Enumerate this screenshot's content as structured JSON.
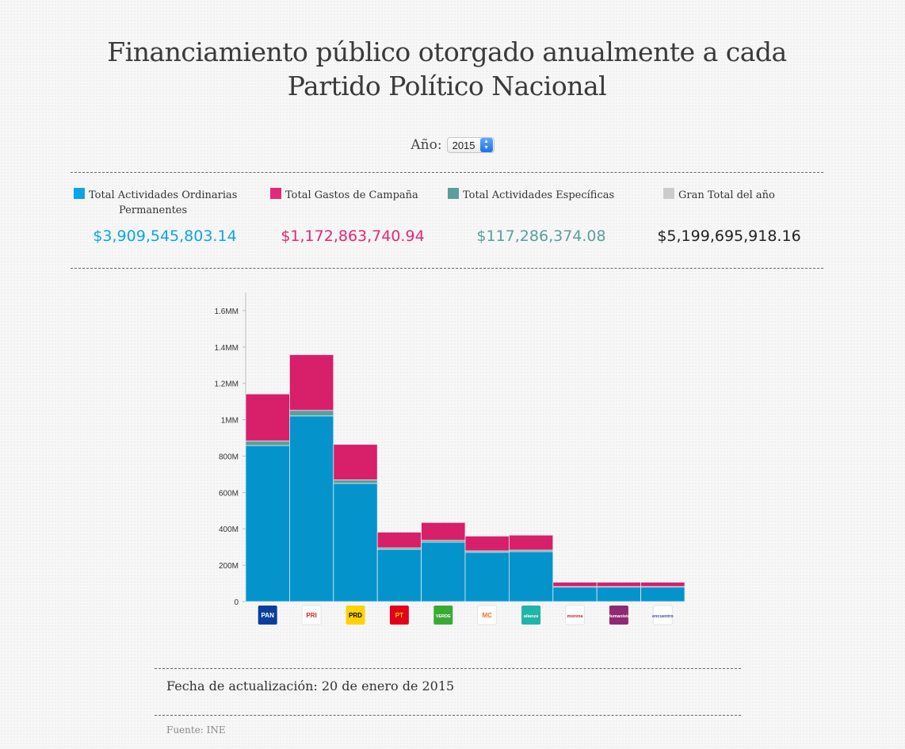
{
  "page": {
    "title": "Financiamiento público otorgado anualmente a cada Partido Político Nacional",
    "year_label": "Año:",
    "year_selected": "2015",
    "update_text": "Fecha de actualización: 20 de enero de 2015",
    "source_text": "Fuente: INE"
  },
  "summary": [
    {
      "label": "Total Actividades Ordinarias Permanentes",
      "value": "$3,909,545,803.14",
      "color": "#0ca5e6"
    },
    {
      "label": "Total Gastos de Campaña",
      "value": "$1,172,863,740.94",
      "color": "#e2287a"
    },
    {
      "label": "Total Actividades Específicas",
      "value": "$117,286,374.08",
      "color": "#5a9f9c"
    },
    {
      "label": "Gran Total del año",
      "value": "$5,199,695,918.16",
      "color": "#cccccc"
    }
  ],
  "party_logos": [
    {
      "text": "PAN",
      "bg": "#0a3f9c",
      "fg": "#ffffff"
    },
    {
      "text": "PRI",
      "bg": "#ffffff",
      "fg": "#d81f26"
    },
    {
      "text": "PRD",
      "bg": "#ffd200",
      "fg": "#000000"
    },
    {
      "text": "PT",
      "bg": "#e3001b",
      "fg": "#ffdd00"
    },
    {
      "text": "VERDE",
      "bg": "#3aaa35",
      "fg": "#ffffff"
    },
    {
      "text": "MC",
      "bg": "#ffffff",
      "fg": "#ff6a13"
    },
    {
      "text": "alianza",
      "bg": "#1fb5a8",
      "fg": "#ffffff"
    },
    {
      "text": "morena",
      "bg": "#ffffff",
      "fg": "#b3282d"
    },
    {
      "text": "Humanista",
      "bg": "#8e2a72",
      "fg": "#ffffff"
    },
    {
      "text": "encuentro",
      "bg": "#ffffff",
      "fg": "#3a4da0"
    }
  ],
  "chart_data": {
    "type": "bar",
    "stacked": true,
    "categories": [
      "PAN",
      "PRI",
      "PRD",
      "PT",
      "VERDE",
      "MC",
      "NUEVA ALIANZA",
      "MORENA",
      "HUMANISTA",
      "ENCUENTRO SOCIAL"
    ],
    "series": [
      {
        "name": "Total Actividades Ordinarias Permanentes",
        "color": "#0494cb",
        "values": [
          858000000,
          1021000000,
          650000000,
          287000000,
          327000000,
          271000000,
          275000000,
          80000000,
          80000000,
          80000000
        ]
      },
      {
        "name": "Total Actividades Específicas",
        "color": "#5a9f9c",
        "values": [
          25700000,
          30600000,
          19500000,
          8600000,
          9800000,
          8100000,
          8300000,
          2400000,
          2400000,
          2400000
        ]
      },
      {
        "name": "Total Gastos de Campaña",
        "color": "#d81f6a",
        "values": [
          258000000,
          306000000,
          195000000,
          86000000,
          98000000,
          81000000,
          82000000,
          24000000,
          24000000,
          24000000
        ]
      }
    ],
    "ylim": [
      0,
      1700000000
    ],
    "yticks": [
      0,
      200000000,
      400000000,
      600000000,
      800000000,
      1000000000,
      1200000000,
      1400000000,
      1600000000
    ],
    "ytick_labels": [
      "0",
      "200M",
      "400M",
      "600M",
      "800M",
      "1MM",
      "1.2MM",
      "1.4MM",
      "1.6MM"
    ],
    "grid": false
  }
}
